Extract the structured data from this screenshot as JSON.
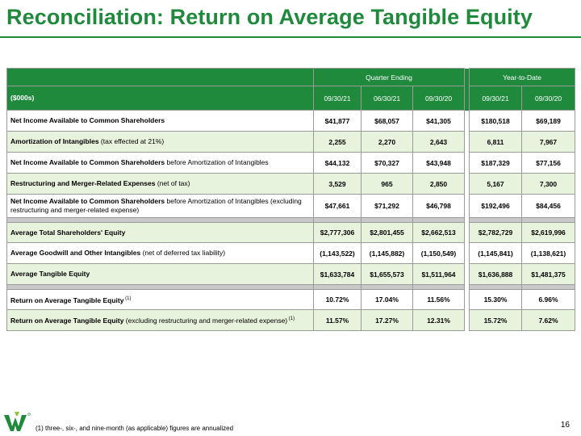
{
  "title": "Reconciliation: Return on Average Tangible Equity",
  "headers": {
    "group_quarter": "Quarter Ending",
    "group_ytd": "Year-to-Date",
    "row_label": "($000s)",
    "columns": [
      "09/30/21",
      "06/30/21",
      "09/30/20",
      "09/30/21",
      "09/30/20"
    ]
  },
  "rows": [
    {
      "label_bold": "Net Income Available to Common Shareholders",
      "label_rest": "",
      "values": [
        "$41,877",
        "$68,057",
        "$41,305",
        "$180,518",
        "$69,189"
      ]
    },
    {
      "label_bold": "Amortization of Intangibles",
      "label_rest": " (tax effected at 21%)",
      "values": [
        "2,255",
        "2,270",
        "2,643",
        "6,811",
        "7,967"
      ]
    },
    {
      "label_bold": "Net Income Available to Common Shareholders",
      "label_rest": " before Amortization of Intangibles",
      "values": [
        "$44,132",
        "$70,327",
        "$43,948",
        "$187,329",
        "$77,156"
      ]
    },
    {
      "label_bold": "Restructuring and Merger-Related Expenses",
      "label_rest": " (net of tax)",
      "values": [
        "3,529",
        "965",
        "2,850",
        "5,167",
        "7,300"
      ]
    },
    {
      "label_bold": "Net Income Available to Common Shareholders",
      "label_rest": " before Amortization of Intangibles (excluding restructuring and merger-related expense)",
      "values": [
        "$47,661",
        "$71,292",
        "$46,798",
        "$192,496",
        "$84,456"
      ]
    },
    {
      "label_bold": "Average Total Shareholders' Equity",
      "label_rest": "",
      "values": [
        "$2,777,306",
        "$2,801,455",
        "$2,662,513",
        "$2,782,729",
        "$2,619,996"
      ]
    },
    {
      "label_bold": "Average Goodwill and Other Intangibles",
      "label_rest": " (net of deferred tax liability)",
      "values": [
        "(1,143,522)",
        "(1,145,882)",
        "(1,150,549)",
        "(1,145,841)",
        "(1,138,621)"
      ]
    },
    {
      "label_bold": "Average Tangible Equity",
      "label_rest": "",
      "values": [
        "$1,633,784",
        "$1,655,573",
        "$1,511,964",
        "$1,636,888",
        "$1,481,375"
      ]
    },
    {
      "label_bold": "Return on Average Tangible Equity",
      "label_rest": "",
      "sup": " (1)",
      "values": [
        "10.72%",
        "17.04%",
        "11.56%",
        "15.30%",
        "6.96%"
      ]
    },
    {
      "label_bold": "Return on Average Tangible Equity",
      "label_rest": " (excluding restructuring and merger-related expense)",
      "sup": " (1)",
      "values": [
        "11.57%",
        "17.27%",
        "12.31%",
        "15.72%",
        "7.62%"
      ]
    }
  ],
  "footnote": "(1) three-, six-, and nine-month (as applicable) figures are annualized",
  "page_number": "16",
  "colors": {
    "brand_green": "#1f8a3c",
    "row_shade": "#e8f3de",
    "separator": "#c9c9c9"
  }
}
